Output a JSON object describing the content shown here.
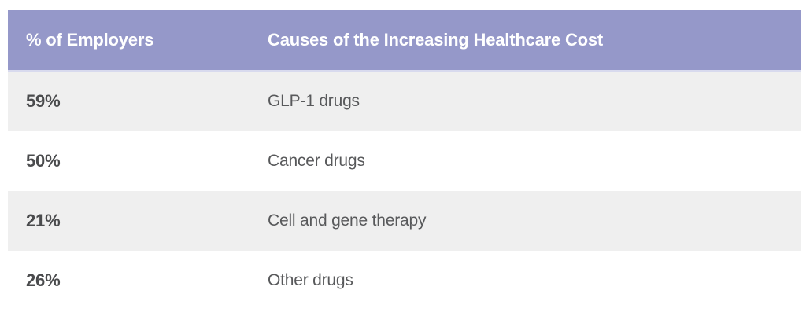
{
  "table": {
    "columns": [
      {
        "label": "% of Employers"
      },
      {
        "label": "Causes of the Increasing Healthcare Cost"
      }
    ],
    "rows": [
      {
        "pct": "59%",
        "cause": "GLP-1 drugs"
      },
      {
        "pct": "50%",
        "cause": "Cancer drugs"
      },
      {
        "pct": "21%",
        "cause": "Cell and gene therapy"
      },
      {
        "pct": "26%",
        "cause": "Other drugs"
      }
    ]
  },
  "colors": {
    "header_bg": "#9598c9",
    "header_border": "#d8daee",
    "header_text": "#ffffff",
    "row_alt_bg": "#efefef",
    "row_bg": "#ffffff",
    "pct_text": "#4a4b4d",
    "body_text": "#58595b"
  },
  "chart_data": {
    "type": "table",
    "title": "Causes of the Increasing Healthcare Cost",
    "columns": [
      "% of Employers",
      "Causes of the Increasing Healthcare Cost"
    ],
    "rows": [
      [
        "59%",
        "GLP-1 drugs"
      ],
      [
        "50%",
        "Cancer drugs"
      ],
      [
        "21%",
        "Cell and gene therapy"
      ],
      [
        "26%",
        "Other drugs"
      ]
    ],
    "series": [
      {
        "name": "% of Employers",
        "categories": [
          "GLP-1 drugs",
          "Cancer drugs",
          "Cell and gene therapy",
          "Other drugs"
        ],
        "values": [
          59,
          50,
          21,
          26
        ]
      }
    ],
    "legend_position": "none",
    "grid": false
  }
}
